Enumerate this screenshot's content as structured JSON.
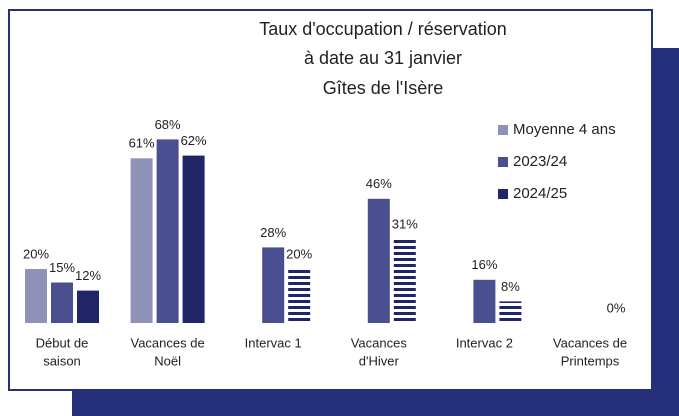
{
  "chart_data": {
    "type": "bar",
    "title": [
      "Taux d'occupation / réservation",
      "à date au 31 janvier",
      "Gîtes de l'Isère"
    ],
    "categories": [
      [
        "Début de",
        "saison"
      ],
      [
        "Vacances de",
        "Noël"
      ],
      [
        "Intervac 1"
      ],
      [
        "Vacances",
        "d'Hiver"
      ],
      [
        "Intervac 2"
      ],
      [
        "Vacances de",
        "Printemps"
      ]
    ],
    "series": [
      {
        "name": "Moyenne 4 ans",
        "color": "#8e91b8",
        "values": [
          20,
          61,
          null,
          null,
          null,
          null
        ],
        "value_labels": [
          "20%",
          "61%",
          null,
          null,
          null,
          null
        ]
      },
      {
        "name": "2023/24",
        "color": "#4a4f8f",
        "values": [
          15,
          68,
          28,
          46,
          16,
          null
        ],
        "value_labels": [
          "15%",
          "68%",
          "28%",
          "46%",
          "16%",
          null
        ]
      },
      {
        "name": "2024/25",
        "color": "#1f2566",
        "values": [
          12,
          62,
          20,
          31,
          8,
          0
        ],
        "value_labels": [
          "12%",
          "62%",
          "20%",
          "31%",
          "8%",
          "0%"
        ],
        "hatched": [
          false,
          false,
          true,
          true,
          true,
          false
        ]
      }
    ],
    "legend": "right"
  }
}
